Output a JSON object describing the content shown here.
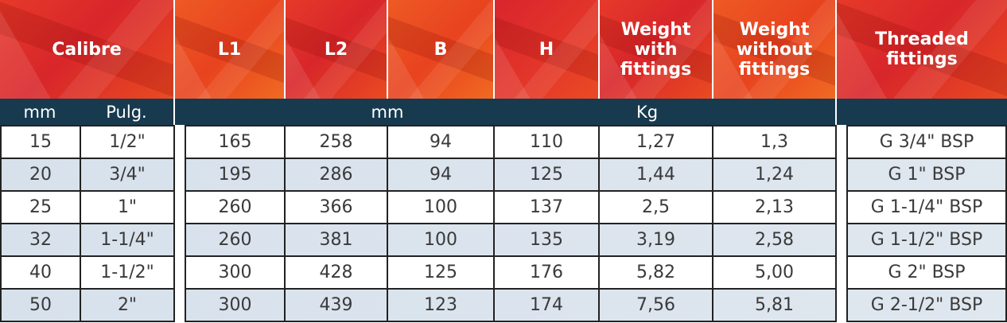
{
  "headers": {
    "calibre": "Calibre",
    "l1": "L1",
    "l2": "L2",
    "b": "B",
    "h": "H",
    "weight_with": "Weight with fittings",
    "weight_without": "Weight without fittings",
    "threaded": "Threaded fittings"
  },
  "units": {
    "mm": "mm",
    "pulg": "Pulg.",
    "dims_mm": "mm",
    "kg": "Kg"
  },
  "rows": [
    {
      "mm": "15",
      "pulg": "1/2\"",
      "l1": "165",
      "l2": "258",
      "b": "94",
      "h": "110",
      "w_with": "1,27",
      "w_without": "1,3",
      "thread": "G 3/4\" BSP"
    },
    {
      "mm": "20",
      "pulg": "3/4\"",
      "l1": "195",
      "l2": "286",
      "b": "94",
      "h": "125",
      "w_with": "1,44",
      "w_without": "1,24",
      "thread": "G 1\" BSP"
    },
    {
      "mm": "25",
      "pulg": "1\"",
      "l1": "260",
      "l2": "366",
      "b": "100",
      "h": "137",
      "w_with": "2,5",
      "w_without": "2,13",
      "thread": "G 1-1/4\" BSP"
    },
    {
      "mm": "32",
      "pulg": "1-1/4\"",
      "l1": "260",
      "l2": "381",
      "b": "100",
      "h": "135",
      "w_with": "3,19",
      "w_without": "2,58",
      "thread": "G 1-1/2\" BSP"
    },
    {
      "mm": "40",
      "pulg": "1-1/2\"",
      "l1": "300",
      "l2": "428",
      "b": "125",
      "h": "176",
      "w_with": "5,82",
      "w_without": "5,00",
      "thread": "G 2\" BSP"
    },
    {
      "mm": "50",
      "pulg": "2\"",
      "l1": "300",
      "l2": "439",
      "b": "123",
      "h": "174",
      "w_with": "7,56",
      "w_without": "5,81",
      "thread": "G 2-1/2\" BSP"
    }
  ],
  "colors": {
    "header_red": "#e2342a",
    "header_orange": "#ee5a24",
    "unit_bar": "#173a4f",
    "row_alt": "#d7e1ec"
  }
}
